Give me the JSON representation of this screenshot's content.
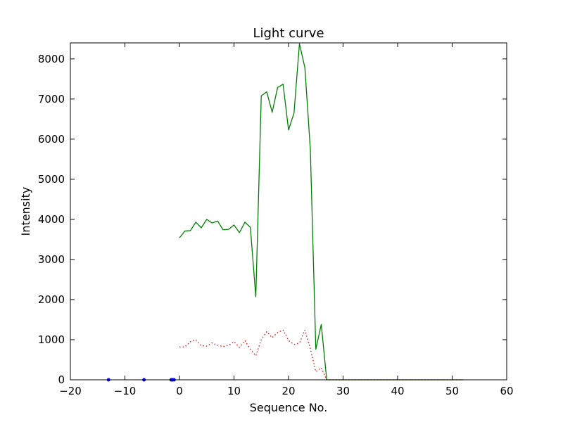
{
  "chart_data": {
    "type": "line",
    "title": "Light curve",
    "xlabel": "Sequence No.",
    "ylabel": "Intensity",
    "xlim": [
      -20,
      60
    ],
    "ylim": [
      0,
      8400
    ],
    "xticks": [
      -20,
      -10,
      0,
      10,
      20,
      30,
      40,
      50,
      60
    ],
    "yticks": [
      0,
      1000,
      2000,
      3000,
      4000,
      5000,
      6000,
      7000,
      8000
    ],
    "xtick_labels": [
      "−20",
      "−10",
      "0",
      "10",
      "20",
      "30",
      "40",
      "50",
      "60"
    ],
    "ytick_labels": [
      "0",
      "1000",
      "2000",
      "3000",
      "4000",
      "5000",
      "6000",
      "7000",
      "8000"
    ],
    "grid": false,
    "series": [
      {
        "style": "solid",
        "color": "#008000",
        "x": [
          0,
          1,
          2,
          3,
          4,
          5,
          6,
          7,
          8,
          9,
          10,
          11,
          12,
          13,
          14,
          15,
          16,
          17,
          18,
          19,
          20,
          21,
          22,
          23,
          24,
          25,
          26,
          27,
          28,
          29,
          30,
          31,
          32,
          33,
          34,
          35,
          36,
          37,
          38,
          39,
          40,
          41,
          42,
          43,
          44,
          45,
          46,
          47,
          48,
          49,
          50,
          51,
          52
        ],
        "y": [
          3540,
          3710,
          3720,
          3930,
          3790,
          4000,
          3910,
          3960,
          3740,
          3750,
          3860,
          3670,
          3930,
          3800,
          2070,
          7080,
          7180,
          6670,
          7290,
          7370,
          6230,
          6650,
          8380,
          7780,
          5740,
          760,
          1380,
          0,
          0,
          0,
          0,
          0,
          0,
          0,
          0,
          0,
          0,
          0,
          0,
          0,
          0,
          0,
          0,
          0,
          0,
          0,
          0,
          0,
          0,
          0,
          0,
          0,
          0
        ]
      },
      {
        "style": "dotted",
        "color": "#ff0000",
        "x": [
          0,
          1,
          2,
          3,
          4,
          5,
          6,
          7,
          8,
          9,
          10,
          11,
          12,
          13,
          14,
          15,
          16,
          17,
          18,
          19,
          20,
          21,
          22,
          23,
          24,
          25,
          26,
          27,
          28,
          29,
          30,
          31,
          32,
          33,
          34,
          35,
          36,
          37,
          38,
          39,
          40,
          41,
          42,
          43,
          44,
          45,
          46,
          47,
          48,
          49,
          50,
          51,
          52
        ],
        "y": [
          820,
          820,
          950,
          1000,
          850,
          840,
          920,
          860,
          830,
          860,
          950,
          810,
          980,
          760,
          600,
          1000,
          1200,
          1050,
          1180,
          1240,
          980,
          880,
          920,
          1240,
          780,
          200,
          300,
          0,
          0,
          0,
          0,
          0,
          0,
          0,
          0,
          0,
          0,
          0,
          0,
          0,
          0,
          0,
          0,
          0,
          0,
          0,
          0,
          0,
          0,
          0,
          0,
          0,
          0
        ]
      },
      {
        "style": "solid",
        "color": "#0000ff",
        "x": [
          -13,
          -6.5,
          -1.5,
          -1.3,
          -1.0
        ],
        "y": [
          0,
          0,
          0,
          0,
          0
        ]
      }
    ]
  }
}
